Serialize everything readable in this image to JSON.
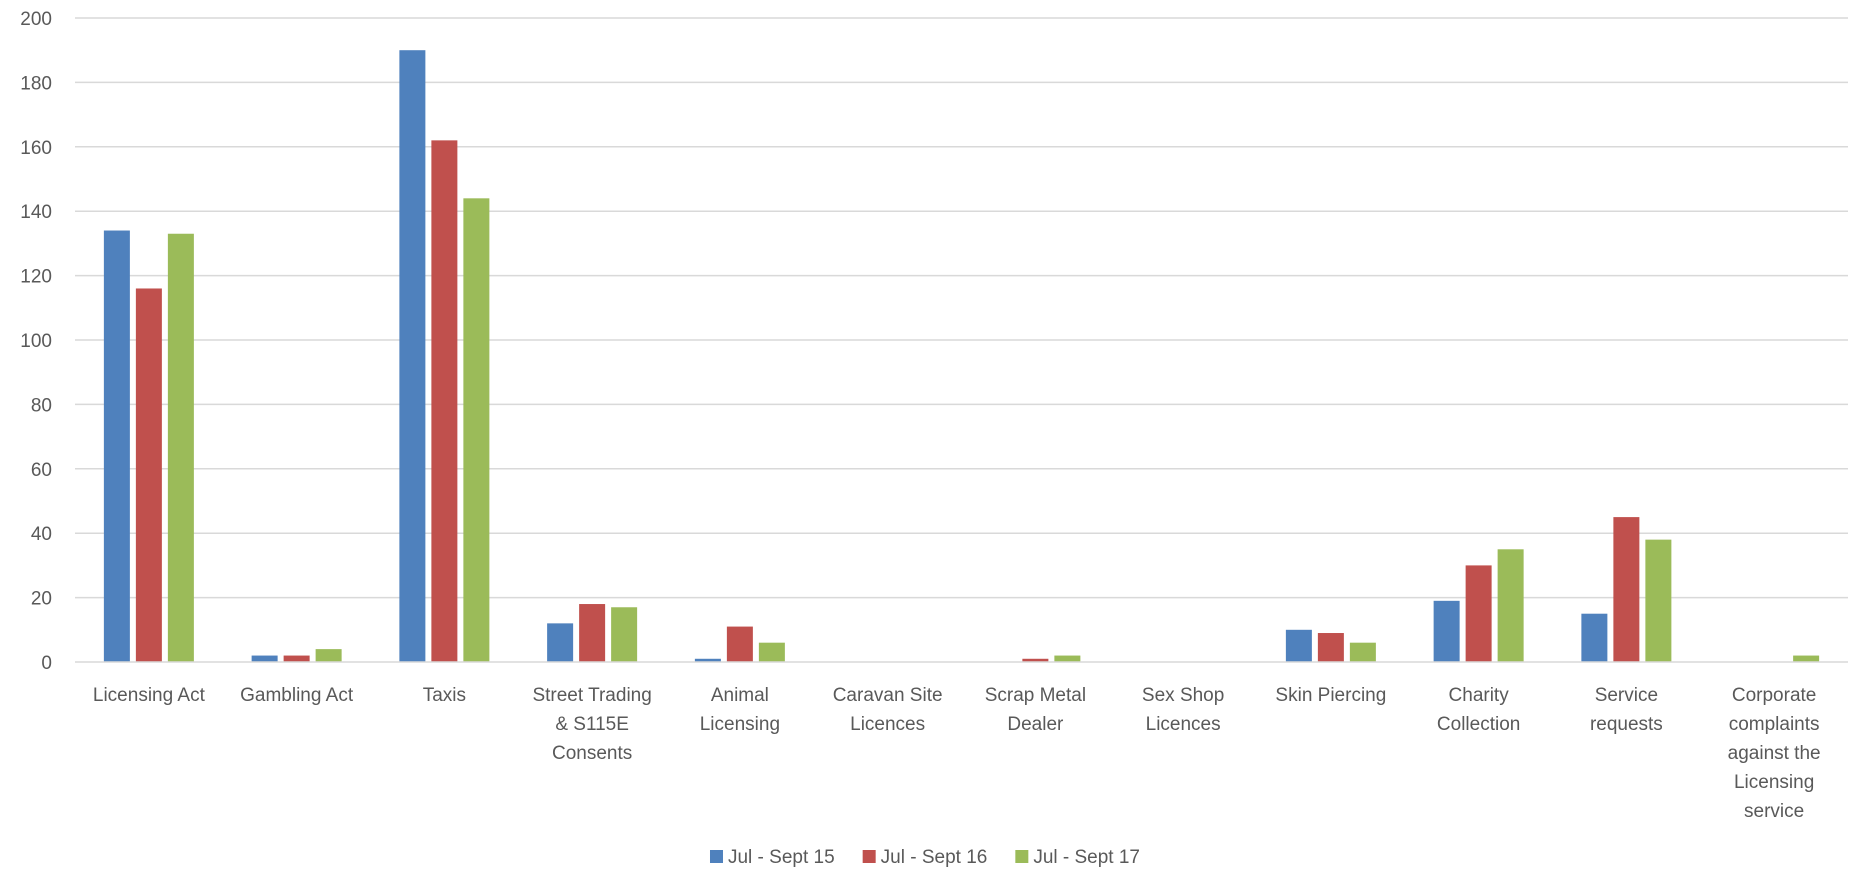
{
  "chart_data": {
    "type": "bar",
    "title": "",
    "xlabel": "",
    "ylabel": "",
    "ylim": [
      0,
      200
    ],
    "yticks": [
      0,
      20,
      40,
      60,
      80,
      100,
      120,
      140,
      160,
      180,
      200
    ],
    "grid": true,
    "legend_position": "bottom",
    "categories": [
      [
        "Licensing Act"
      ],
      [
        "Gambling Act"
      ],
      [
        "Taxis"
      ],
      [
        "Street Trading",
        "& S115E",
        "Consents"
      ],
      [
        "Animal",
        "Licensing"
      ],
      [
        "Caravan Site",
        "Licences"
      ],
      [
        "Scrap Metal",
        "Dealer"
      ],
      [
        "Sex Shop",
        "Licences"
      ],
      [
        "Skin Piercing"
      ],
      [
        "Charity",
        "Collection"
      ],
      [
        "Service",
        "requests"
      ],
      [
        "Corporate",
        "complaints",
        "against the",
        "Licensing",
        "service"
      ]
    ],
    "series": [
      {
        "name": "Jul - Sept 15",
        "color": "#4F81BD",
        "values": [
          134,
          2,
          190,
          12,
          1,
          0,
          0,
          0,
          10,
          19,
          15,
          0
        ]
      },
      {
        "name": "Jul - Sept 16",
        "color": "#C0504D",
        "values": [
          116,
          2,
          162,
          18,
          11,
          0,
          1,
          0,
          9,
          30,
          45,
          0
        ]
      },
      {
        "name": "Jul - Sept 17",
        "color": "#9BBB59",
        "values": [
          133,
          4,
          144,
          17,
          6,
          0,
          2,
          0,
          6,
          35,
          38,
          2
        ]
      }
    ]
  }
}
